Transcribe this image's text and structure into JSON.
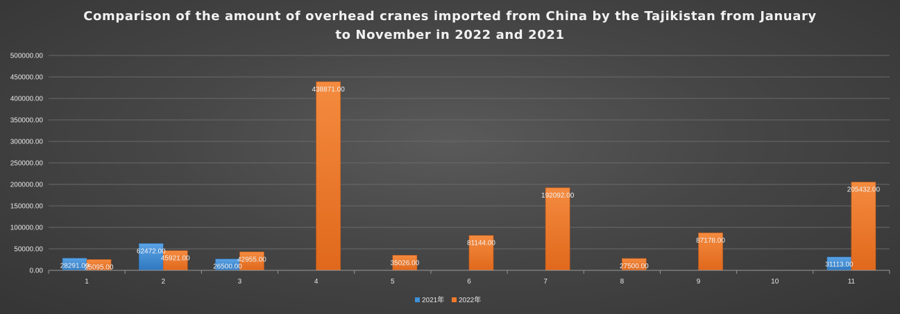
{
  "chart_data": {
    "type": "bar",
    "title_line1": "Comparison of the amount of overhead cranes imported from China by the Tajikistan from January",
    "title_line2": "to November in 2022 and 2021",
    "categories": [
      "1",
      "2",
      "3",
      "4",
      "5",
      "6",
      "7",
      "8",
      "9",
      "10",
      "11"
    ],
    "series": [
      {
        "name": "2021年",
        "color": "#3f8fd8",
        "values": [
          28291,
          62472,
          26500,
          null,
          null,
          null,
          null,
          null,
          null,
          null,
          31113
        ],
        "labels": [
          "28291.00",
          "62472.00",
          "26500.00",
          "",
          "",
          "",
          "",
          "",
          "",
          "",
          "31113.00"
        ]
      },
      {
        "name": "2022年",
        "color": "#f07a2a",
        "values": [
          25095,
          45921,
          42955,
          438871,
          35026,
          81144,
          192092,
          27500,
          87178,
          null,
          205432
        ],
        "labels": [
          "25095.00",
          "45921.00",
          "42955.00",
          "438871.00",
          "35026.00",
          "81144.00",
          "192092.00",
          "27500.00",
          "87178.00",
          "",
          "205432.00"
        ]
      }
    ],
    "y_ticks": [
      "0.00",
      "50000.00",
      "100000.00",
      "150000.00",
      "200000.00",
      "250000.00",
      "300000.00",
      "350000.00",
      "400000.00",
      "450000.00",
      "500000.00"
    ],
    "ylim": [
      0,
      500000
    ],
    "xlabel": "",
    "ylabel": "",
    "grid": true,
    "legend_position": "bottom"
  }
}
